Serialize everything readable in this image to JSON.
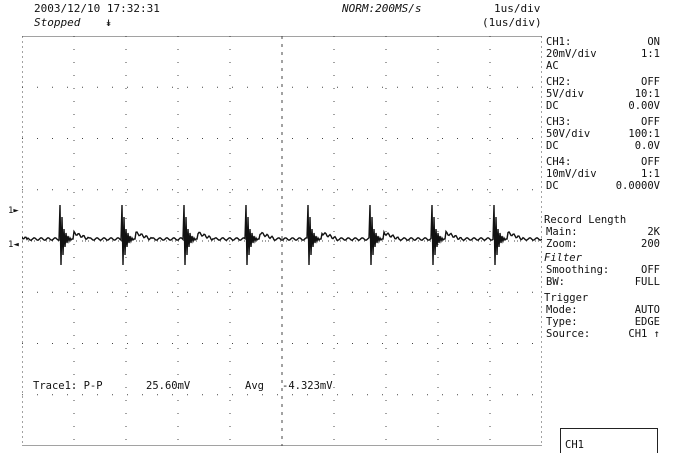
{
  "header": {
    "datetime": "2003/12/10  17:32:31",
    "state": "Stopped",
    "trigger_symbol": "↡",
    "sample_rate": "NORM:200MS/s",
    "timebase": "1us/div",
    "zoom_timebase": "(1us/div)"
  },
  "channels": [
    {
      "name": "CH1:",
      "state": "ON",
      "scale": "20mV/div",
      "probe": "1:1",
      "coupling": "AC",
      "offset": ""
    },
    {
      "name": "CH2:",
      "state": "OFF",
      "scale": "5V/div",
      "probe": "10:1",
      "coupling": "DC",
      "offset": "0.00V"
    },
    {
      "name": "CH3:",
      "state": "OFF",
      "scale": "50V/div",
      "probe": "100:1",
      "coupling": "DC",
      "offset": "0.0V"
    },
    {
      "name": "CH4:",
      "state": "OFF",
      "scale": "10mV/div",
      "probe": "1:1",
      "coupling": "DC",
      "offset": "0.0000V"
    }
  ],
  "record": {
    "title": "Record Length",
    "main_label": "Main:",
    "main_value": "2K",
    "zoom_label": "Zoom:",
    "zoom_value": "200"
  },
  "filter": {
    "title": "Filter",
    "smoothing_label": "Smoothing:",
    "smoothing_value": "OFF",
    "bw_label": "BW:",
    "bw_value": "FULL"
  },
  "trigger": {
    "title": "Trigger",
    "mode_label": "Mode:",
    "mode_value": "AUTO",
    "type_label": "Type:",
    "type_value": "EDGE",
    "source_label": "Source:",
    "source_value": "CH1 ↑"
  },
  "active_channel": "CH1",
  "markers": {
    "trigger_level": "1►",
    "ch1_ground": "1◄"
  },
  "measurement": {
    "label": "Trace1: P-P",
    "pp_value": "25.60mV",
    "avg_label": "Avg",
    "avg_value": "-4.323mV"
  },
  "colors": {
    "trace": "#111111",
    "grid": "#444444",
    "background": "#ffffff"
  }
}
